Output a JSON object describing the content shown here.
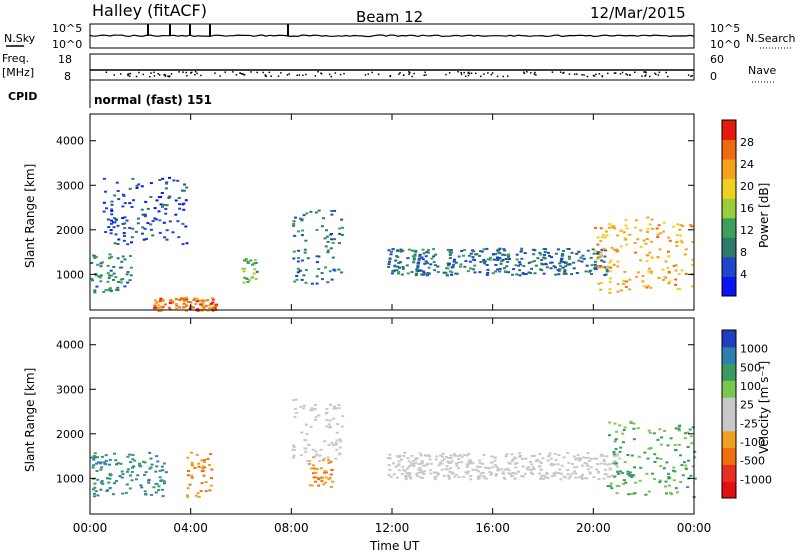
{
  "header": {
    "title": "Halley (fitACF)",
    "beam": "Beam 12",
    "date": "12/Mar/2015"
  },
  "strip_top": {
    "left_label": "N.Sky",
    "left_ticks": [
      "10^5",
      "10^0"
    ],
    "right_label": "N.Search",
    "right_ticks": [
      "10^5",
      "10^0"
    ]
  },
  "strip_freq": {
    "left_label_1": "Freq.",
    "left_label_2": "[MHz]",
    "left_ticks": [
      "18",
      "8"
    ],
    "right_label": "Nave",
    "right_ticks": [
      "60",
      "0"
    ]
  },
  "cpid": {
    "label": "CPID",
    "mode": "normal (fast) 151"
  },
  "colors": {
    "power_scale": [
      "#0a14f0",
      "#1e46c8",
      "#2c7a6c",
      "#3aa05a",
      "#9bcf3a",
      "#f0d020",
      "#f5a21e",
      "#f06a10",
      "#e41a0c"
    ],
    "velocity_scale": [
      "#1f3fbf",
      "#2c7fb0",
      "#3a9a60",
      "#78c850",
      "#c8c8c8",
      "#c8c8c8",
      "#f0a020",
      "#f07010",
      "#e83020",
      "#e01010"
    ]
  },
  "chart_data": [
    {
      "type": "heatmap",
      "panel": "power",
      "ylabel": "Slant Range [km]",
      "yticks": [
        1000,
        2000,
        3000,
        4000
      ],
      "ylim": [
        200,
        4600
      ],
      "xlim_hours": [
        0,
        24
      ],
      "colorbar_label": "Power [dB]",
      "colorbar_ticks": [
        4,
        8,
        12,
        16,
        20,
        24,
        28
      ],
      "colorbar_range": [
        0,
        32
      ],
      "features": [
        {
          "t_start": 0.0,
          "t_end": 1.6,
          "range_low": 600,
          "range_high": 1500,
          "value": 10
        },
        {
          "t_start": 0.5,
          "t_end": 3.8,
          "range_low": 1700,
          "range_high": 3200,
          "value": 6
        },
        {
          "t_start": 2.5,
          "t_end": 5.0,
          "range_low": 200,
          "range_high": 500,
          "value": 26
        },
        {
          "t_start": 6.0,
          "t_end": 6.6,
          "range_low": 800,
          "range_high": 1400,
          "value": 14
        },
        {
          "t_start": 8.0,
          "t_end": 10.0,
          "range_low": 800,
          "range_high": 2500,
          "value": 9
        },
        {
          "t_start": 11.8,
          "t_end": 20.5,
          "range_low": 1000,
          "range_high": 1600,
          "value": 8
        },
        {
          "t_start": 20.0,
          "t_end": 24.0,
          "range_low": 600,
          "range_high": 2300,
          "value": 22
        }
      ]
    },
    {
      "type": "heatmap",
      "panel": "velocity",
      "ylabel": "Slant Range [km]",
      "yticks": [
        1000,
        2000,
        3000,
        4000
      ],
      "ylim": [
        200,
        4600
      ],
      "xlim_hours": [
        0,
        24
      ],
      "xticks": [
        "00:00",
        "04:00",
        "08:00",
        "12:00",
        "16:00",
        "20:00",
        "00:00"
      ],
      "xlabel": "Time UT",
      "colorbar_label": "Velocity [m s⁻¹]",
      "colorbar_ticks": [
        "1000",
        "500",
        "100",
        "25",
        "-25",
        "-100",
        "-500",
        "-1000"
      ],
      "features": [
        {
          "t_start": 0.0,
          "t_end": 3.0,
          "range_low": 600,
          "range_high": 1600,
          "value": 300
        },
        {
          "t_start": 3.8,
          "t_end": 4.8,
          "range_low": 600,
          "range_high": 1600,
          "value": -400
        },
        {
          "t_start": 8.6,
          "t_end": 9.6,
          "range_low": 800,
          "range_high": 1500,
          "value": -400
        },
        {
          "t_start": 8.0,
          "t_end": 10.0,
          "range_low": 1400,
          "range_high": 2800,
          "value": 0
        },
        {
          "t_start": 11.8,
          "t_end": 21.0,
          "range_low": 1000,
          "range_high": 1600,
          "value": 0
        },
        {
          "t_start": 20.5,
          "t_end": 24.0,
          "range_low": 600,
          "range_high": 2300,
          "value": 150
        }
      ]
    }
  ]
}
